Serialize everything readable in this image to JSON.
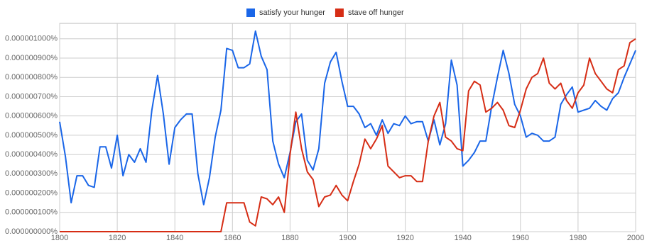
{
  "chart_data": {
    "type": "line",
    "x": [
      1800,
      1802,
      1804,
      1806,
      1808,
      1810,
      1812,
      1814,
      1816,
      1818,
      1820,
      1822,
      1824,
      1826,
      1828,
      1830,
      1832,
      1834,
      1836,
      1838,
      1840,
      1842,
      1844,
      1846,
      1848,
      1850,
      1852,
      1854,
      1856,
      1858,
      1860,
      1862,
      1864,
      1866,
      1868,
      1870,
      1872,
      1874,
      1876,
      1878,
      1880,
      1882,
      1884,
      1886,
      1888,
      1890,
      1892,
      1894,
      1896,
      1898,
      1900,
      1902,
      1904,
      1906,
      1908,
      1910,
      1912,
      1914,
      1916,
      1918,
      1920,
      1922,
      1924,
      1926,
      1928,
      1930,
      1932,
      1934,
      1936,
      1938,
      1940,
      1942,
      1944,
      1946,
      1948,
      1950,
      1952,
      1954,
      1956,
      1958,
      1960,
      1962,
      1964,
      1966,
      1968,
      1970,
      1972,
      1974,
      1976,
      1978,
      1980,
      1982,
      1984,
      1986,
      1988,
      1990,
      1992,
      1994,
      1996,
      1998,
      2000
    ],
    "series": [
      {
        "name": "satisfy your hunger",
        "color": "#1a66e8",
        "values": [
          5.7e-07,
          3.9e-07,
          1.5e-07,
          2.9e-07,
          2.9e-07,
          2.4e-07,
          2.3e-07,
          4.4e-07,
          4.4e-07,
          3.3e-07,
          5e-07,
          2.9e-07,
          4e-07,
          3.6e-07,
          4.3e-07,
          3.6e-07,
          6.3e-07,
          8.1e-07,
          6.1e-07,
          3.5e-07,
          5.4e-07,
          5.8e-07,
          6.1e-07,
          6.1e-07,
          3e-07,
          1.4e-07,
          2.8e-07,
          4.9e-07,
          6.3e-07,
          9.5e-07,
          9.4e-07,
          8.5e-07,
          8.5e-07,
          8.7e-07,
          1.04e-06,
          9.1e-07,
          8.4e-07,
          4.7e-07,
          3.5e-07,
          2.8e-07,
          4.1e-07,
          5.7e-07,
          6.1e-07,
          3.7e-07,
          3.2e-07,
          4.3e-07,
          7.7e-07,
          8.8e-07,
          9.3e-07,
          7.8e-07,
          6.5e-07,
          6.5e-07,
          6.1e-07,
          5.4e-07,
          5.6e-07,
          5e-07,
          5.8e-07,
          5.1e-07,
          5.6e-07,
          5.5e-07,
          6e-07,
          5.6e-07,
          5.7e-07,
          5.7e-07,
          4.7e-07,
          5.8e-07,
          4.5e-07,
          5.6e-07,
          8.9e-07,
          7.6e-07,
          3.4e-07,
          3.7e-07,
          4.1e-07,
          4.7e-07,
          4.7e-07,
          6.5e-07,
          8e-07,
          9.4e-07,
          8.2e-07,
          6.6e-07,
          6e-07,
          4.9e-07,
          5.1e-07,
          5e-07,
          4.7e-07,
          4.7e-07,
          4.9e-07,
          6.6e-07,
          7.1e-07,
          7.5e-07,
          6.2e-07,
          6.3e-07,
          6.4e-07,
          6.8e-07,
          6.5e-07,
          6.3e-07,
          6.9e-07,
          7.2e-07,
          8e-07,
          8.7e-07,
          9.4e-07
        ]
      },
      {
        "name": "stave off hunger",
        "color": "#d62d15",
        "values": [
          0,
          0,
          0,
          0,
          0,
          0,
          0,
          0,
          0,
          0,
          0,
          0,
          0,
          0,
          0,
          0,
          0,
          0,
          0,
          0,
          0,
          0,
          0,
          0,
          0,
          0,
          0,
          0,
          0,
          1.5e-07,
          1.5e-07,
          1.5e-07,
          1.5e-07,
          5e-08,
          3e-08,
          1.8e-07,
          1.7e-07,
          1.4e-07,
          1.8e-07,
          1e-07,
          4e-07,
          6.2e-07,
          4.3e-07,
          3.1e-07,
          2.7e-07,
          1.3e-07,
          1.8e-07,
          1.9e-07,
          2.4e-07,
          1.9e-07,
          1.6e-07,
          2.6e-07,
          3.5e-07,
          4.8e-07,
          4.3e-07,
          4.8e-07,
          5.5e-07,
          3.4e-07,
          3.1e-07,
          2.8e-07,
          2.9e-07,
          2.9e-07,
          2.6e-07,
          2.6e-07,
          4.7e-07,
          6e-07,
          6.7e-07,
          4.9e-07,
          4.7e-07,
          4.3e-07,
          4.2e-07,
          7.3e-07,
          7.8e-07,
          7.6e-07,
          6.2e-07,
          6.4e-07,
          6.7e-07,
          6.3e-07,
          5.5e-07,
          5.4e-07,
          6.3e-07,
          7.4e-07,
          8e-07,
          8.2e-07,
          9e-07,
          7.7e-07,
          7.4e-07,
          7.7e-07,
          6.8e-07,
          6.4e-07,
          7.2e-07,
          7.6e-07,
          9e-07,
          8.2e-07,
          7.8e-07,
          7.4e-07,
          7.2e-07,
          8.4e-07,
          8.6e-07,
          9.8e-07,
          1e-06
        ]
      }
    ],
    "xlim": [
      1800,
      2000
    ],
    "xticks": [
      1800,
      1820,
      1840,
      1860,
      1880,
      1900,
      1920,
      1940,
      1960,
      1980,
      2000
    ],
    "ylim": [
      0,
      1.08e-06
    ],
    "yticks": [
      {
        "value": 0,
        "label": "0.000000000%"
      },
      {
        "value": 1e-07,
        "label": "0.000000100%"
      },
      {
        "value": 2e-07,
        "label": "0.000000200%"
      },
      {
        "value": 3e-07,
        "label": "0.000000300%"
      },
      {
        "value": 4e-07,
        "label": "0.000000400%"
      },
      {
        "value": 5e-07,
        "label": "0.000000500%"
      },
      {
        "value": 6e-07,
        "label": "0.000000600%"
      },
      {
        "value": 7e-07,
        "label": "0.000000700%"
      },
      {
        "value": 8e-07,
        "label": "0.000000800%"
      },
      {
        "value": 9e-07,
        "label": "0.000000900%"
      },
      {
        "value": 1e-06,
        "label": "0.000001000%"
      }
    ],
    "grid": true,
    "legend": "top"
  }
}
